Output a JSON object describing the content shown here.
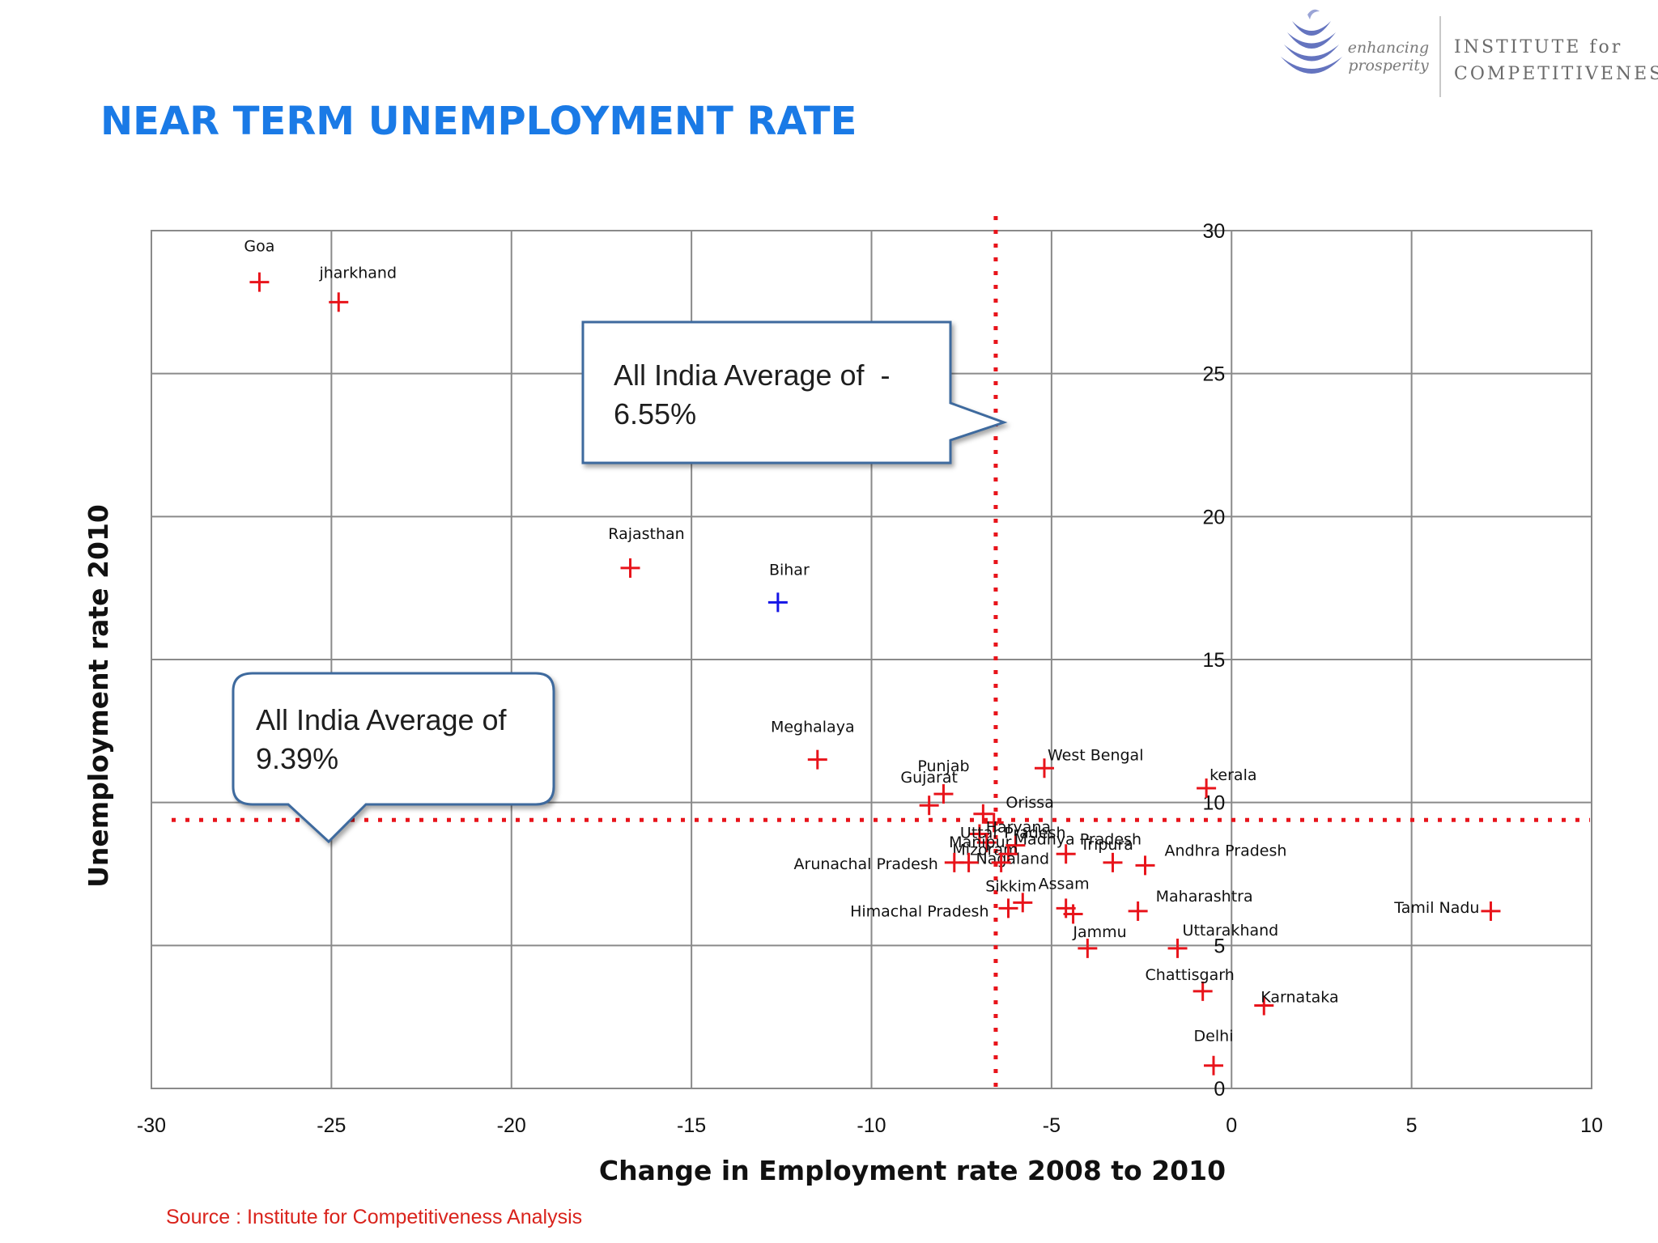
{
  "title": "NEAR TERM UNEMPLOYMENT RATE",
  "logo": {
    "tagline_line1": "enhancing",
    "tagline_line2": "prosperity",
    "name_line1": "INSTITUTE for",
    "name_line2": "COMPETITIVENESS",
    "icon": "layered-leaf-icon",
    "color": "#4a5cb5"
  },
  "source": "Source : Institute for Competitiveness Analysis",
  "callouts": [
    {
      "id": "x-average",
      "text": "All India Average of  -\n6.55%"
    },
    {
      "id": "y-average",
      "text": "All India Average of\n9.39%"
    }
  ],
  "chart_data": {
    "type": "scatter",
    "xlabel": "Change in Employment rate 2008 to 2010",
    "ylabel": "Unemployment rate 2010",
    "xlim": [
      -30,
      10
    ],
    "ylim": [
      0,
      30
    ],
    "xticks": [
      -30,
      -25,
      -20,
      -15,
      -10,
      -5,
      0,
      5,
      10
    ],
    "yticks": [
      0,
      5,
      10,
      15,
      20,
      25,
      30
    ],
    "grid": true,
    "marker": "plus",
    "marker_color": "#e8141b",
    "highlight_color": "#1414e6",
    "average_line_color": "#e8141b",
    "x_average": -6.55,
    "y_average": 9.39,
    "points": [
      {
        "label": "Goa",
        "x": -27,
        "y": 28.2
      },
      {
        "label": "jharkhand",
        "x": -24.8,
        "y": 27.5
      },
      {
        "label": "Rajasthan",
        "x": -16.7,
        "y": 18.2
      },
      {
        "label": "Bihar",
        "x": -12.6,
        "y": 17.0,
        "highlight": true
      },
      {
        "label": "Meghalaya",
        "x": -11.5,
        "y": 11.5
      },
      {
        "label": "West Bengal",
        "x": -5.2,
        "y": 11.2
      },
      {
        "label": "kerala",
        "x": -0.7,
        "y": 10.5
      },
      {
        "label": "Punjab",
        "x": -8.0,
        "y": 10.3
      },
      {
        "label": "Gujarat",
        "x": -8.4,
        "y": 9.9
      },
      {
        "label": "Orissa",
        "x": -6.9,
        "y": 9.6
      },
      {
        "label": "Haryana",
        "x": -6.6,
        "y": 9.3
      },
      {
        "label": "Uttar Pradesh",
        "x": -7.0,
        "y": 8.9
      },
      {
        "label": "Manipur",
        "x": -6.8,
        "y": 8.6
      },
      {
        "label": "Mizoram",
        "x": -6.0,
        "y": 8.5
      },
      {
        "label": "Nagaland",
        "x": -6.2,
        "y": 8.2
      },
      {
        "label": "Madhya Pradesh",
        "x": -4.6,
        "y": 8.2
      },
      {
        "label": "Tripura",
        "x": -3.3,
        "y": 7.9
      },
      {
        "label": "Andhra Pradesh",
        "x": -2.4,
        "y": 7.8
      },
      {
        "label": "Arunachal Pradesh",
        "x": -7.7,
        "y": 7.9
      },
      {
        "label": "",
        "x": -7.3,
        "y": 7.9
      },
      {
        "label": "",
        "x": -6.4,
        "y": 7.9
      },
      {
        "label": "Sikkim",
        "x": -5.8,
        "y": 6.5
      },
      {
        "label": "Assam",
        "x": -4.6,
        "y": 6.3
      },
      {
        "label": "",
        "x": -4.4,
        "y": 6.1
      },
      {
        "label": "Himachal Pradesh",
        "x": -6.2,
        "y": 6.3
      },
      {
        "label": "Maharashtra",
        "x": -2.6,
        "y": 6.2
      },
      {
        "label": "Tamil Nadu",
        "x": 7.2,
        "y": 6.2
      },
      {
        "label": "Jammu",
        "x": -4.0,
        "y": 4.9
      },
      {
        "label": "Uttarakhand",
        "x": -1.5,
        "y": 4.9
      },
      {
        "label": "Chattisgarh",
        "x": -0.8,
        "y": 3.4
      },
      {
        "label": "Karnataka",
        "x": 0.9,
        "y": 2.9
      },
      {
        "label": "Delhi",
        "x": -0.5,
        "y": 0.8
      }
    ]
  }
}
